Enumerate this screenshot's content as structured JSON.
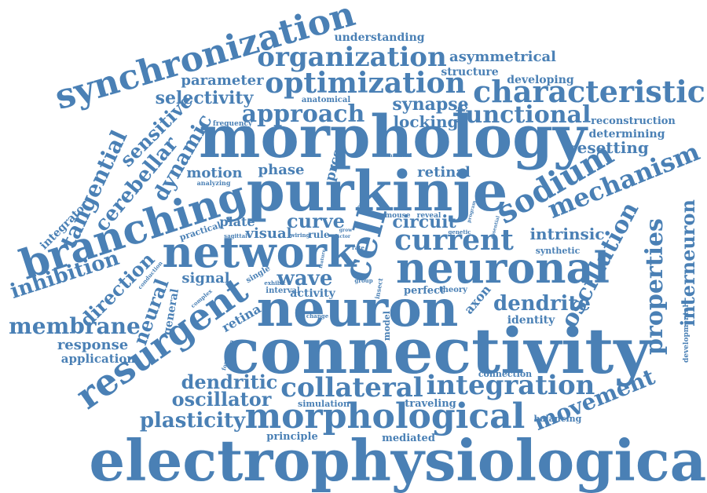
{
  "color": "#4a80b5",
  "words": [
    {
      "id": "electrophysiological",
      "text": "electrophysiological"
    },
    {
      "id": "connectivity",
      "text": "connectivity"
    },
    {
      "id": "morphology",
      "text": "morphology"
    },
    {
      "id": "purkinje",
      "text": "purkinje"
    },
    {
      "id": "neuron",
      "text": "neuron"
    },
    {
      "id": "network",
      "text": "network"
    },
    {
      "id": "neuronal",
      "text": "neuronal"
    },
    {
      "id": "branching",
      "text": "branching"
    },
    {
      "id": "morphological",
      "text": "morphological"
    },
    {
      "id": "resurgent",
      "text": "resurgent"
    },
    {
      "id": "synchronization",
      "text": "synchronization"
    },
    {
      "id": "cell",
      "text": "cell"
    },
    {
      "id": "characteristic",
      "text": "characteristic"
    },
    {
      "id": "optimization",
      "text": "optimization"
    },
    {
      "id": "organization",
      "text": "organization"
    },
    {
      "id": "collateral",
      "text": "collateral"
    },
    {
      "id": "integration",
      "text": "integration"
    },
    {
      "id": "sodium",
      "text": "sodium"
    },
    {
      "id": "current",
      "text": "current"
    },
    {
      "id": "mechanism",
      "text": "mechanism"
    },
    {
      "id": "functional",
      "text": "functional"
    },
    {
      "id": "approach",
      "text": "approach"
    },
    {
      "id": "membrane",
      "text": "membrane"
    },
    {
      "id": "movement",
      "text": "movement"
    },
    {
      "id": "oscillation",
      "text": "oscillation"
    },
    {
      "id": "properties",
      "text": "properties"
    },
    {
      "id": "interneuron",
      "text": "interneuron"
    },
    {
      "id": "dendrite",
      "text": "dendrite"
    },
    {
      "id": "plasticity",
      "text": "plasticity"
    },
    {
      "id": "oscillator",
      "text": "oscillator"
    },
    {
      "id": "dendritic",
      "text": "dendritic"
    },
    {
      "id": "tangential",
      "text": "tangential"
    },
    {
      "id": "cerebellar",
      "text": "cerebellar"
    },
    {
      "id": "inhibition",
      "text": "inhibition"
    },
    {
      "id": "dynamic",
      "text": "dynamic"
    },
    {
      "id": "sensitive",
      "text": "sensitive"
    },
    {
      "id": "selectivity",
      "text": "selectivity"
    },
    {
      "id": "parameter",
      "text": "parameter"
    },
    {
      "id": "synapse",
      "text": "synapse"
    },
    {
      "id": "locking",
      "text": "locking"
    },
    {
      "id": "resetting",
      "text": "resetting"
    },
    {
      "id": "wave",
      "text": "wave"
    },
    {
      "id": "curve",
      "text": "curve"
    },
    {
      "id": "direction",
      "text": "direction"
    },
    {
      "id": "neural",
      "text": "neural"
    },
    {
      "id": "response",
      "text": "response"
    },
    {
      "id": "intrinsic",
      "text": "intrinsic"
    },
    {
      "id": "asymmetrical",
      "text": "asymmetrical"
    },
    {
      "id": "structure",
      "text": "structure"
    },
    {
      "id": "understanding",
      "text": "understanding"
    },
    {
      "id": "developing",
      "text": "developing"
    },
    {
      "id": "reconstruction",
      "text": "reconstruction"
    },
    {
      "id": "determining",
      "text": "determining"
    },
    {
      "id": "motion",
      "text": "motion"
    },
    {
      "id": "phase",
      "text": "phase"
    },
    {
      "id": "retinal",
      "text": "retinal"
    },
    {
      "id": "prcs",
      "text": "prcs"
    },
    {
      "id": "visual",
      "text": "visual"
    },
    {
      "id": "plate",
      "text": "plate"
    },
    {
      "id": "circuit",
      "text": "circuit"
    },
    {
      "id": "signal",
      "text": "signal"
    },
    {
      "id": "axon",
      "text": "axon"
    },
    {
      "id": "identity",
      "text": "identity"
    },
    {
      "id": "activity",
      "text": "activity"
    },
    {
      "id": "retina",
      "text": "retina"
    },
    {
      "id": "general",
      "text": "general"
    },
    {
      "id": "application",
      "text": "application"
    },
    {
      "id": "integrator",
      "text": "integrator"
    },
    {
      "id": "simulation",
      "text": "simulation"
    },
    {
      "id": "traveling",
      "text": "traveling"
    },
    {
      "id": "principle",
      "text": "principle"
    },
    {
      "id": "mediated",
      "text": "mediated"
    },
    {
      "id": "balancing",
      "text": "balancing"
    },
    {
      "id": "connection",
      "text": "connection"
    },
    {
      "id": "anatomical",
      "text": "anatomical"
    },
    {
      "id": "frequency",
      "text": "frequency"
    },
    {
      "id": "analyzing",
      "text": "analyzing"
    },
    {
      "id": "practical",
      "text": "practical"
    },
    {
      "id": "sagittal",
      "text": "sagittal"
    },
    {
      "id": "wiring",
      "text": "wiring"
    },
    {
      "id": "rule",
      "text": "rule"
    },
    {
      "id": "factor",
      "text": "factor"
    },
    {
      "id": "conduction",
      "text": "conduction"
    },
    {
      "id": "complex",
      "text": "complex"
    },
    {
      "id": "exhibit",
      "text": "exhibit"
    },
    {
      "id": "interval",
      "text": "interval"
    },
    {
      "id": "single",
      "text": "single"
    },
    {
      "id": "perfect",
      "text": "perfect"
    },
    {
      "id": "theory",
      "text": "theory"
    },
    {
      "id": "group",
      "text": "group"
    },
    {
      "id": "insect",
      "text": "insect"
    },
    {
      "id": "model",
      "text": "model"
    },
    {
      "id": "change",
      "text": "change"
    },
    {
      "id": "formalism",
      "text": "formalism"
    },
    {
      "id": "synthetic",
      "text": "synthetic"
    },
    {
      "id": "developmental",
      "text": "developmental"
    },
    {
      "id": "artificial",
      "text": "artificial"
    },
    {
      "id": "specific",
      "text": "specific"
    },
    {
      "id": "grow",
      "text": "grow"
    },
    {
      "id": "mouse",
      "text": "mouse"
    },
    {
      "id": "reveal",
      "text": "reveal"
    },
    {
      "id": "genetic",
      "text": "genetic"
    },
    {
      "id": "essential",
      "text": "essential"
    },
    {
      "id": "program",
      "text": "program"
    },
    {
      "id": "rate",
      "text": "rate"
    },
    {
      "id": "feature",
      "text": "feature"
    }
  ]
}
